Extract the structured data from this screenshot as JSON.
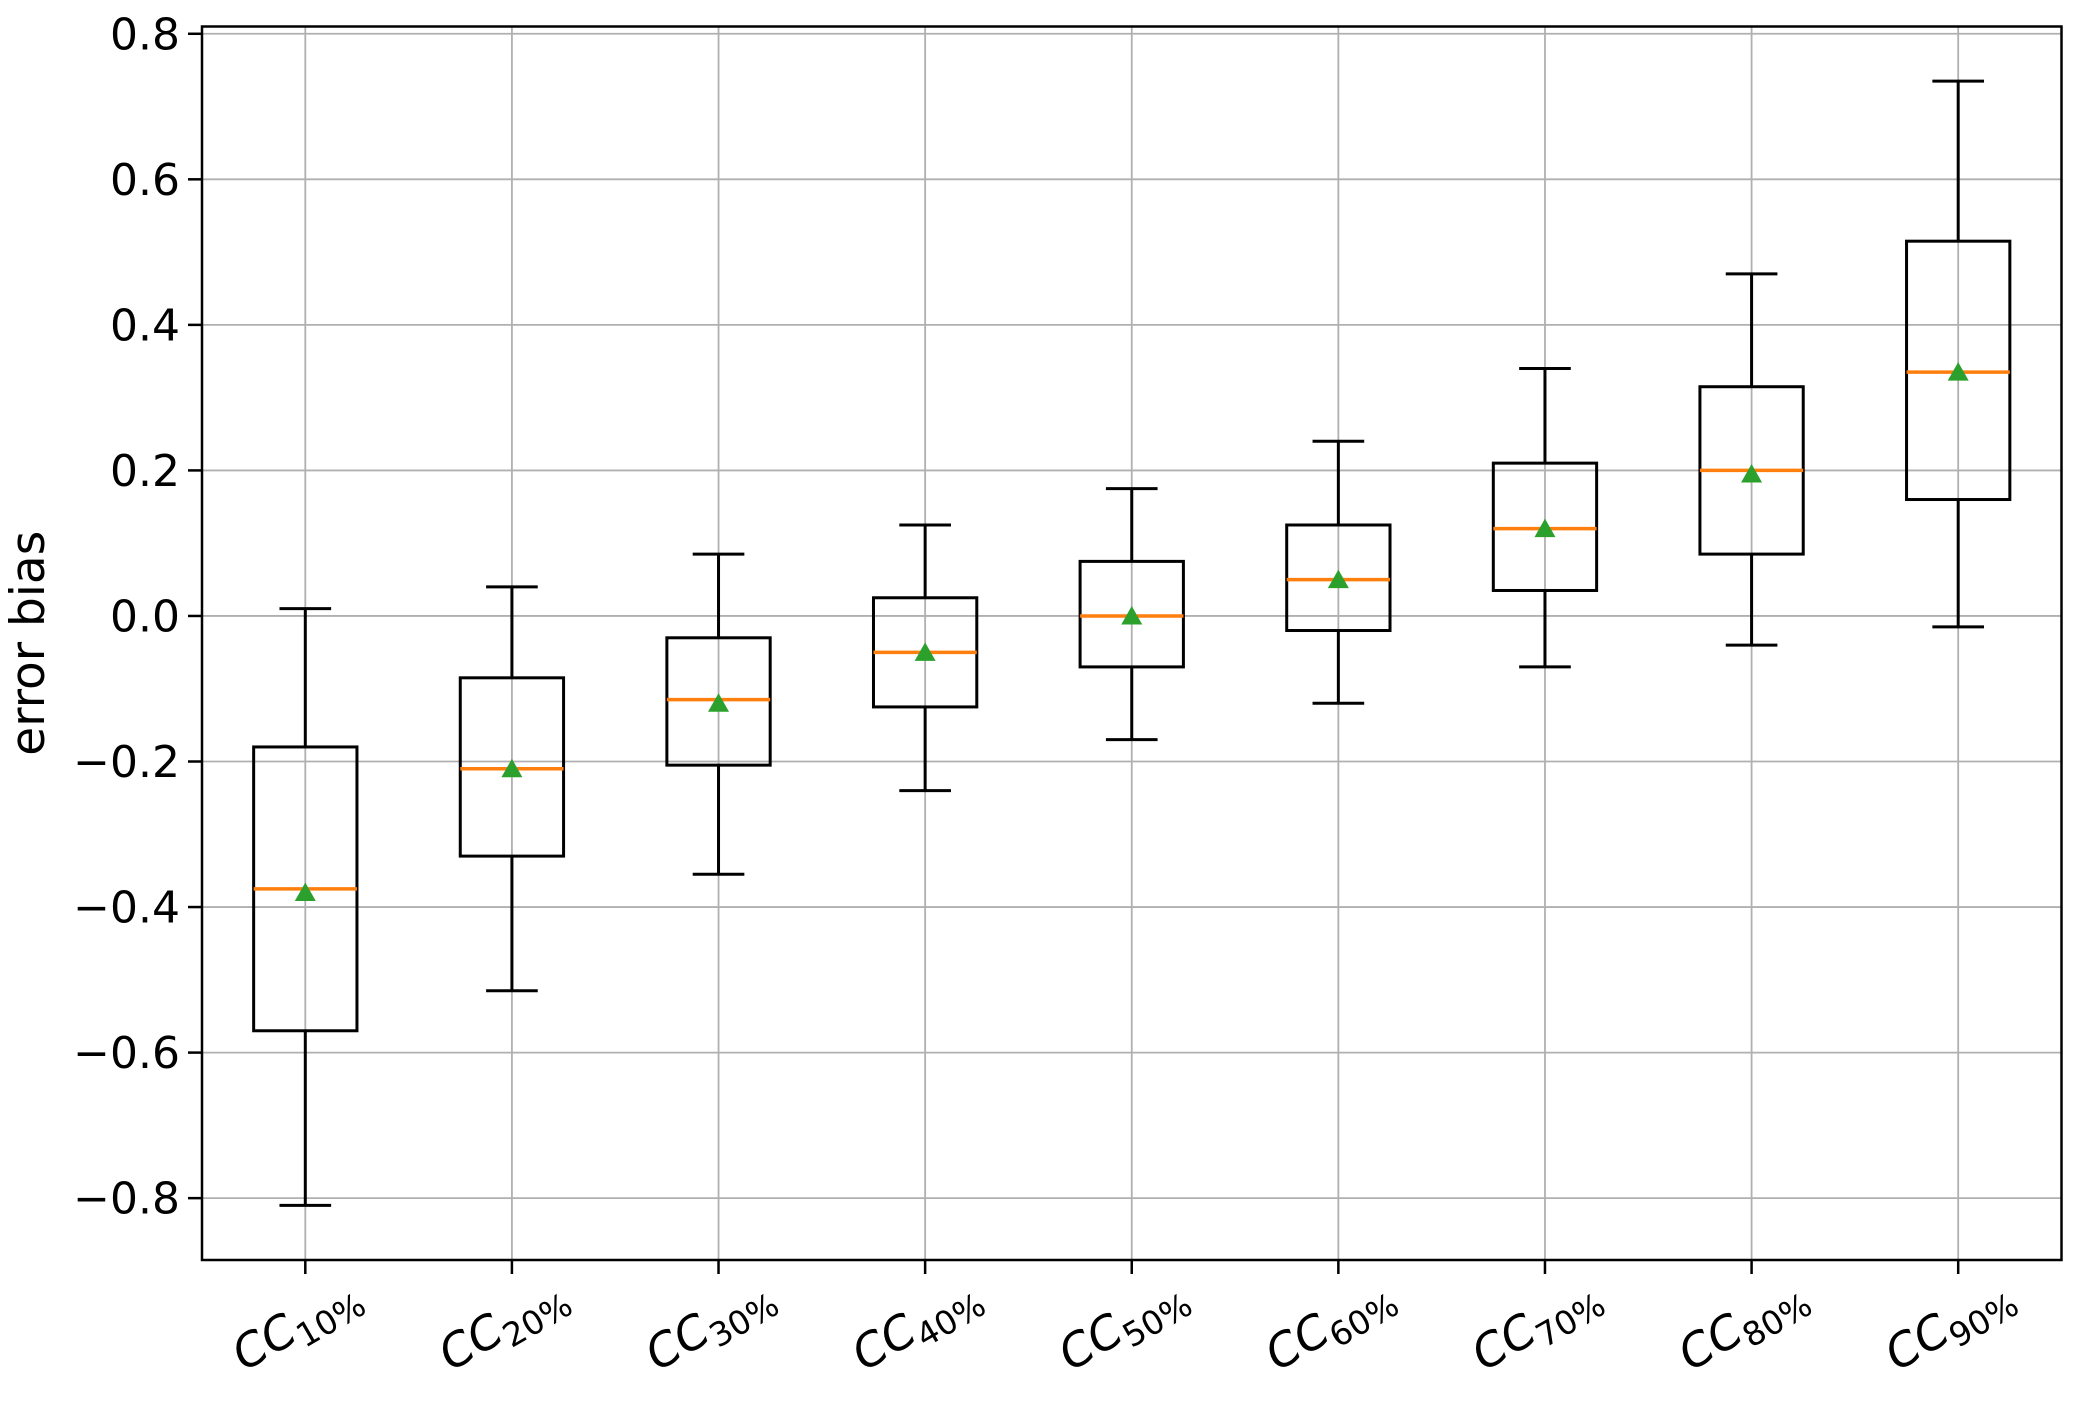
{
  "chart_data": {
    "type": "boxplot",
    "title": "",
    "xlabel": "",
    "ylabel": "error bias",
    "ylim": [
      -0.885,
      0.81
    ],
    "yticks": [
      0.8,
      0.6,
      0.4,
      0.2,
      0.0,
      -0.2,
      -0.4,
      -0.6,
      -0.8
    ],
    "ytick_labels": [
      "0.8",
      "0.6",
      "0.4",
      "0.2",
      "0.0",
      "−0.2",
      "−0.4",
      "−0.6",
      "−0.8"
    ],
    "grid": true,
    "legend": null,
    "x_tick_rotation_deg": 30,
    "categories": [
      "CC10%",
      "CC20%",
      "CC30%",
      "CC40%",
      "CC50%",
      "CC60%",
      "CC70%",
      "CC80%",
      "CC90%"
    ],
    "category_labels": [
      {
        "prefix": "CC",
        "subscript": "10%"
      },
      {
        "prefix": "CC",
        "subscript": "20%"
      },
      {
        "prefix": "CC",
        "subscript": "30%"
      },
      {
        "prefix": "CC",
        "subscript": "40%"
      },
      {
        "prefix": "CC",
        "subscript": "50%"
      },
      {
        "prefix": "CC",
        "subscript": "60%"
      },
      {
        "prefix": "CC",
        "subscript": "70%"
      },
      {
        "prefix": "CC",
        "subscript": "80%"
      },
      {
        "prefix": "CC",
        "subscript": "90%"
      }
    ],
    "boxes": [
      {
        "category": "CC10%",
        "whisker_low": -0.81,
        "q1": -0.57,
        "median": -0.375,
        "mean": -0.38,
        "q3": -0.18,
        "whisker_high": 0.01
      },
      {
        "category": "CC20%",
        "whisker_low": -0.515,
        "q1": -0.33,
        "median": -0.21,
        "mean": -0.21,
        "q3": -0.085,
        "whisker_high": 0.04
      },
      {
        "category": "CC30%",
        "whisker_low": -0.355,
        "q1": -0.205,
        "median": -0.115,
        "mean": -0.12,
        "q3": -0.03,
        "whisker_high": 0.085
      },
      {
        "category": "CC40%",
        "whisker_low": -0.24,
        "q1": -0.125,
        "median": -0.05,
        "mean": -0.05,
        "q3": 0.025,
        "whisker_high": 0.125
      },
      {
        "category": "CC50%",
        "whisker_low": -0.17,
        "q1": -0.07,
        "median": 0.0,
        "mean": 0.0,
        "q3": 0.075,
        "whisker_high": 0.175
      },
      {
        "category": "CC60%",
        "whisker_low": -0.12,
        "q1": -0.02,
        "median": 0.05,
        "mean": 0.05,
        "q3": 0.125,
        "whisker_high": 0.24
      },
      {
        "category": "CC70%",
        "whisker_low": -0.07,
        "q1": 0.035,
        "median": 0.12,
        "mean": 0.12,
        "q3": 0.21,
        "whisker_high": 0.34
      },
      {
        "category": "CC80%",
        "whisker_low": -0.04,
        "q1": 0.085,
        "median": 0.2,
        "mean": 0.195,
        "q3": 0.315,
        "whisker_high": 0.47
      },
      {
        "category": "CC90%",
        "whisker_low": -0.015,
        "q1": 0.16,
        "median": 0.335,
        "mean": 0.335,
        "q3": 0.515,
        "whisker_high": 0.735
      }
    ],
    "style": {
      "median_color": "#ff7f0e",
      "mean_marker_color": "#2ca02c",
      "mean_marker": "triangle-up",
      "box_edge_color": "#000000",
      "whisker_color": "#000000",
      "grid_color": "#b0b0b0",
      "axis_color": "#000000",
      "background": "#ffffff",
      "tick_label_color": "#000000"
    }
  }
}
